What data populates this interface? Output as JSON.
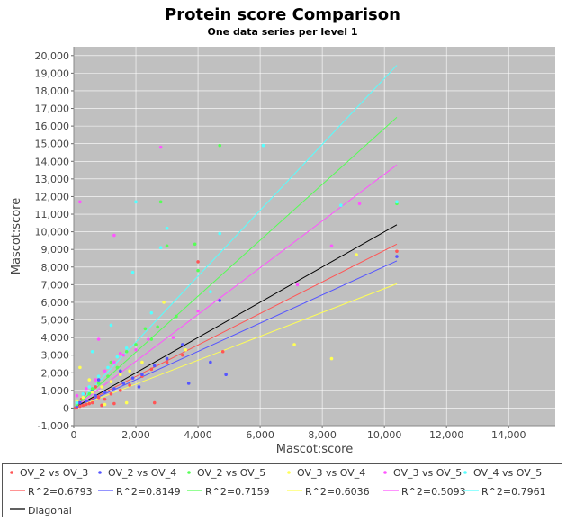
{
  "chart_data": {
    "type": "scatter",
    "title": "Protein score Comparison",
    "subtitle": "One data series per level 1",
    "xlabel": "Mascot:score",
    "ylabel": "Mascot:score",
    "xlim": [
      0,
      15500
    ],
    "ylim": [
      -1000,
      20500
    ],
    "xticks": [
      "0",
      "2,000",
      "4,000",
      "6,000",
      "8,000",
      "10,000",
      "12,000",
      "14,000"
    ],
    "xtick_values": [
      0,
      2000,
      4000,
      6000,
      8000,
      10000,
      12000,
      14000
    ],
    "yticks": [
      "-1,000",
      "0",
      "1,000",
      "2,000",
      "3,000",
      "4,000",
      "5,000",
      "6,000",
      "7,000",
      "8,000",
      "9,000",
      "10,000",
      "11,000",
      "12,000",
      "13,000",
      "14,000",
      "15,000",
      "16,000",
      "17,000",
      "18,000",
      "19,000",
      "20,000"
    ],
    "ytick_values": [
      -1000,
      0,
      1000,
      2000,
      3000,
      4000,
      5000,
      6000,
      7000,
      8000,
      9000,
      10000,
      11000,
      12000,
      13000,
      14000,
      15000,
      16000,
      17000,
      18000,
      19000,
      20000
    ],
    "grid": true,
    "background": "#c0c0c0",
    "legend_position": "bottom",
    "series": [
      {
        "name": "OV_2 vs OV_3",
        "kind": "scatter",
        "color": "#ff5555",
        "points": [
          [
            50,
            0
          ],
          [
            100,
            50
          ],
          [
            200,
            100
          ],
          [
            300,
            150
          ],
          [
            400,
            200
          ],
          [
            150,
            300
          ],
          [
            250,
            500
          ],
          [
            600,
            300
          ],
          [
            800,
            600
          ],
          [
            1000,
            500
          ],
          [
            1200,
            800
          ],
          [
            1500,
            1000
          ],
          [
            1800,
            1300
          ],
          [
            2200,
            1800
          ],
          [
            2500,
            2200
          ],
          [
            3000,
            2600
          ],
          [
            3500,
            3000
          ],
          [
            4000,
            8300
          ],
          [
            4800,
            3200
          ],
          [
            10400,
            8900
          ],
          [
            700,
            1200
          ],
          [
            350,
            800
          ],
          [
            500,
            250
          ],
          [
            2600,
            300
          ],
          [
            1300,
            250
          ],
          [
            900,
            150
          ]
        ]
      },
      {
        "name": "OV_2 vs OV_4",
        "kind": "scatter",
        "color": "#5555ff",
        "points": [
          [
            100,
            100
          ],
          [
            200,
            300
          ],
          [
            400,
            400
          ],
          [
            700,
            700
          ],
          [
            1000,
            900
          ],
          [
            1300,
            1100
          ],
          [
            1600,
            1400
          ],
          [
            1900,
            1700
          ],
          [
            2200,
            1900
          ],
          [
            2600,
            2400
          ],
          [
            3000,
            2800
          ],
          [
            3500,
            3600
          ],
          [
            4400,
            2600
          ],
          [
            4700,
            6100
          ],
          [
            4900,
            1900
          ],
          [
            3700,
            1400
          ],
          [
            10400,
            8600
          ],
          [
            800,
            1600
          ],
          [
            1500,
            2100
          ],
          [
            2100,
            1200
          ],
          [
            300,
            600
          ],
          [
            600,
            1000
          ]
        ]
      },
      {
        "name": "OV_2 vs OV_5",
        "kind": "scatter",
        "color": "#55ff55",
        "points": [
          [
            100,
            200
          ],
          [
            300,
            500
          ],
          [
            500,
            800
          ],
          [
            800,
            1400
          ],
          [
            1100,
            1800
          ],
          [
            1400,
            2300
          ],
          [
            1700,
            3200
          ],
          [
            2000,
            3600
          ],
          [
            2300,
            4500
          ],
          [
            2700,
            4600
          ],
          [
            3000,
            9200
          ],
          [
            3300,
            5200
          ],
          [
            3900,
            9300
          ],
          [
            4000,
            7800
          ],
          [
            4700,
            14900
          ],
          [
            2800,
            11700
          ],
          [
            10400,
            11600
          ],
          [
            1200,
            2600
          ],
          [
            600,
            1100
          ],
          [
            2500,
            3900
          ]
        ]
      },
      {
        "name": "OV_3 vs OV_4",
        "kind": "scatter",
        "color": "#ffff55",
        "points": [
          [
            100,
            400
          ],
          [
            300,
            600
          ],
          [
            600,
            900
          ],
          [
            900,
            1200
          ],
          [
            1200,
            1500
          ],
          [
            1500,
            1900
          ],
          [
            1800,
            2100
          ],
          [
            2200,
            2600
          ],
          [
            2900,
            6000
          ],
          [
            3600,
            3300
          ],
          [
            7100,
            3600
          ],
          [
            8300,
            2800
          ],
          [
            9100,
            8700
          ],
          [
            1000,
            200
          ],
          [
            1700,
            300
          ],
          [
            200,
            2300
          ],
          [
            500,
            1600
          ]
        ]
      },
      {
        "name": "OV_3 vs OV_5",
        "kind": "scatter",
        "color": "#ff55ff",
        "points": [
          [
            200,
            11700
          ],
          [
            1300,
            9800
          ],
          [
            2800,
            14800
          ],
          [
            100,
            700
          ],
          [
            400,
            1100
          ],
          [
            700,
            1600
          ],
          [
            1000,
            2100
          ],
          [
            1300,
            2600
          ],
          [
            1600,
            3000
          ],
          [
            2000,
            3300
          ],
          [
            2400,
            3900
          ],
          [
            3200,
            4000
          ],
          [
            4000,
            5500
          ],
          [
            7200,
            7000
          ],
          [
            8300,
            9200
          ],
          [
            9200,
            11600
          ],
          [
            800,
            3900
          ],
          [
            1500,
            3100
          ]
        ]
      },
      {
        "name": "OV_4 vs OV_5",
        "kind": "scatter",
        "color": "#55ffff",
        "points": [
          [
            100,
            300
          ],
          [
            300,
            800
          ],
          [
            500,
            1200
          ],
          [
            800,
            1800
          ],
          [
            1100,
            2300
          ],
          [
            1400,
            2900
          ],
          [
            1700,
            3400
          ],
          [
            1900,
            7700
          ],
          [
            2000,
            11700
          ],
          [
            2800,
            9100
          ],
          [
            3000,
            10200
          ],
          [
            4400,
            6600
          ],
          [
            4700,
            9900
          ],
          [
            6100,
            14900
          ],
          [
            8600,
            11500
          ],
          [
            10400,
            11700
          ],
          [
            1200,
            4700
          ],
          [
            600,
            3200
          ],
          [
            2500,
            5400
          ]
        ]
      },
      {
        "name": "R^2=0.6793",
        "kind": "line",
        "color": "#ff5555",
        "x": [
          0,
          10400
        ],
        "y": [
          0,
          9300
        ]
      },
      {
        "name": "R^2=0.8149",
        "kind": "line",
        "color": "#5555ff",
        "x": [
          0,
          10400
        ],
        "y": [
          0,
          8350
        ]
      },
      {
        "name": "R^2=0.7159",
        "kind": "line",
        "color": "#55ff55",
        "x": [
          0,
          10400
        ],
        "y": [
          0,
          16500
        ]
      },
      {
        "name": "R^2=0.6036",
        "kind": "line",
        "color": "#ffff55",
        "x": [
          0,
          10400
        ],
        "y": [
          0,
          7050
        ]
      },
      {
        "name": "R^2=0.5093",
        "kind": "line",
        "color": "#ff55ff",
        "x": [
          0,
          10400
        ],
        "y": [
          0,
          13800
        ]
      },
      {
        "name": "R^2=0.7961",
        "kind": "line",
        "color": "#55ffff",
        "x": [
          0,
          10400
        ],
        "y": [
          0,
          19450
        ]
      },
      {
        "name": "Diagonal",
        "kind": "line",
        "color": "#000000",
        "x": [
          0,
          10400
        ],
        "y": [
          0,
          10400
        ]
      }
    ]
  }
}
